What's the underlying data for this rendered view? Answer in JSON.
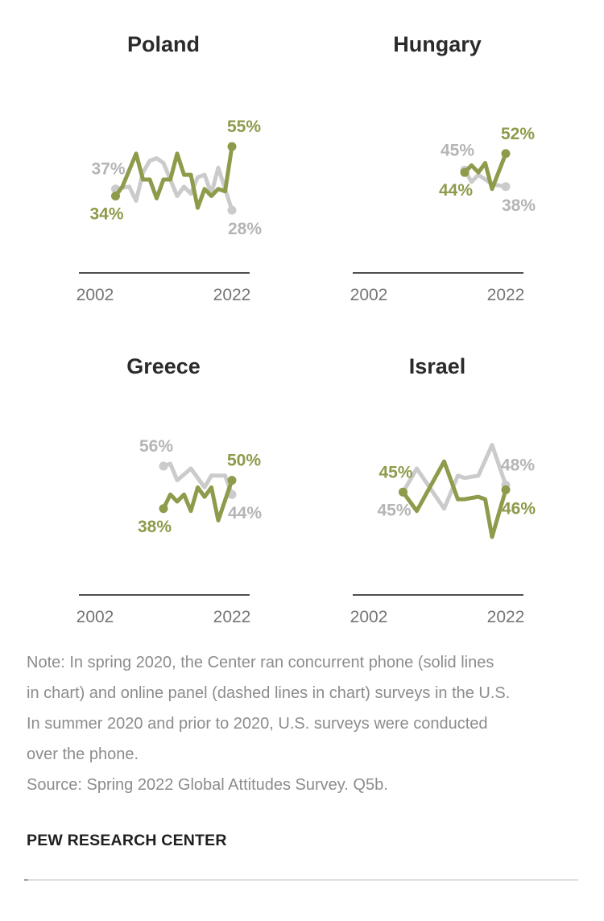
{
  "chart_data": {
    "type": "line",
    "layout": "2x2 small multiples",
    "x_axis": {
      "range": [
        2002,
        2022
      ],
      "tick_labels": [
        "2002",
        "2022"
      ],
      "grid": false
    },
    "y_axis": {
      "visible": false,
      "unit": "%"
    },
    "panels": [
      {
        "title": "Poland",
        "series": [
          {
            "color_role": "gray",
            "points": [
              [
                2005,
                37
              ],
              [
                2007,
                38
              ],
              [
                2008,
                32
              ],
              [
                2009,
                44
              ],
              [
                2010,
                49
              ],
              [
                2011,
                50
              ],
              [
                2012,
                48
              ],
              [
                2014,
                34
              ],
              [
                2015,
                38
              ],
              [
                2016,
                35
              ],
              [
                2017,
                42
              ],
              [
                2018,
                43
              ],
              [
                2019,
                35
              ],
              [
                2020,
                46
              ],
              [
                2022,
                28
              ]
            ],
            "start_label": {
              "text": "37%",
              "pos": "above-left"
            },
            "end_label": {
              "text": "28%",
              "pos": "below-right"
            }
          },
          {
            "color_role": "green",
            "points": [
              [
                2005,
                34
              ],
              [
                2006,
                38
              ],
              [
                2008,
                52
              ],
              [
                2009,
                41
              ],
              [
                2010,
                41
              ],
              [
                2011,
                33
              ],
              [
                2012,
                41
              ],
              [
                2013,
                41
              ],
              [
                2014,
                52
              ],
              [
                2015,
                43
              ],
              [
                2016,
                43
              ],
              [
                2017,
                29
              ],
              [
                2018,
                37
              ],
              [
                2019,
                34
              ],
              [
                2020,
                37
              ],
              [
                2021,
                36
              ],
              [
                2022,
                55
              ]
            ],
            "start_label": {
              "text": "34%",
              "pos": "below-left"
            },
            "end_label": {
              "text": "55%",
              "pos": "above-right"
            }
          }
        ]
      },
      {
        "title": "Hungary",
        "series": [
          {
            "color_role": "gray",
            "points": [
              [
                2016,
                45
              ],
              [
                2017,
                40
              ],
              [
                2018,
                43
              ],
              [
                2020,
                39
              ],
              [
                2022,
                38
              ]
            ],
            "start_label": {
              "text": "45%",
              "pos": "above-left"
            },
            "end_label": {
              "text": "38%",
              "pos": "below-right"
            }
          },
          {
            "color_role": "green",
            "points": [
              [
                2016,
                44
              ],
              [
                2017,
                47
              ],
              [
                2018,
                44
              ],
              [
                2019,
                48
              ],
              [
                2020,
                37
              ],
              [
                2022,
                52
              ]
            ],
            "start_label": {
              "text": "44%",
              "pos": "below-left"
            },
            "end_label": {
              "text": "52%",
              "pos": "above-right"
            }
          }
        ]
      },
      {
        "title": "Greece",
        "series": [
          {
            "color_role": "gray",
            "points": [
              [
                2012,
                56
              ],
              [
                2013,
                57
              ],
              [
                2014,
                50
              ],
              [
                2016,
                55
              ],
              [
                2018,
                47
              ],
              [
                2019,
                52
              ],
              [
                2021,
                52
              ],
              [
                2022,
                44
              ]
            ],
            "start_label": {
              "text": "56%",
              "pos": "above-left"
            },
            "end_label": {
              "text": "44%",
              "pos": "below-right"
            }
          },
          {
            "color_role": "green",
            "points": [
              [
                2012,
                38
              ],
              [
                2013,
                44
              ],
              [
                2014,
                41
              ],
              [
                2015,
                44
              ],
              [
                2016,
                37
              ],
              [
                2017,
                47
              ],
              [
                2018,
                43
              ],
              [
                2019,
                47
              ],
              [
                2020,
                33
              ],
              [
                2022,
                50
              ]
            ],
            "start_label": {
              "text": "38%",
              "pos": "below-left"
            },
            "end_label": {
              "text": "50%",
              "pos": "above-right"
            }
          }
        ]
      },
      {
        "title": "Israel",
        "series": [
          {
            "color_role": "gray",
            "points": [
              [
                2007,
                45
              ],
              [
                2009,
                55
              ],
              [
                2013,
                38
              ],
              [
                2015,
                52
              ],
              [
                2016,
                51
              ],
              [
                2018,
                52
              ],
              [
                2020,
                65
              ],
              [
                2022,
                48
              ]
            ],
            "start_label": {
              "text": "45%",
              "pos": "below-left"
            },
            "end_label": {
              "text": "48%",
              "pos": "above-right"
            }
          },
          {
            "color_role": "green",
            "points": [
              [
                2007,
                45
              ],
              [
                2009,
                37
              ],
              [
                2013,
                58
              ],
              [
                2015,
                42
              ],
              [
                2016,
                42
              ],
              [
                2018,
                43
              ],
              [
                2019,
                42
              ],
              [
                2020,
                26
              ],
              [
                2022,
                46
              ]
            ],
            "start_label": {
              "text": "45%",
              "pos": "above-left"
            },
            "end_label": {
              "text": "46%",
              "pos": "below-right"
            }
          }
        ]
      }
    ]
  },
  "colors": {
    "green": "#8f9a4b",
    "gray_line": "#cbcbcb",
    "gray_label": "#b5b5b5",
    "title": "#2b2b2b",
    "axis": "#4f4f4f",
    "tick_label": "#757575",
    "note": "#8c8c8c",
    "footer": "#1f1f1f",
    "divider": "#dfdfdf",
    "divider_nub": "#9f9f9f"
  },
  "note": {
    "lines": [
      "Note: In spring 2020, the Center ran concurrent phone (solid lines",
      "in chart) and online panel (dashed lines in chart) surveys in the U.S.",
      "In summer 2020 and prior to 2020, U.S. surveys were conducted",
      "over the phone."
    ]
  },
  "source": "Source: Spring 2022 Global Attitudes Survey. Q5b.",
  "footer": "PEW RESEARCH CENTER"
}
